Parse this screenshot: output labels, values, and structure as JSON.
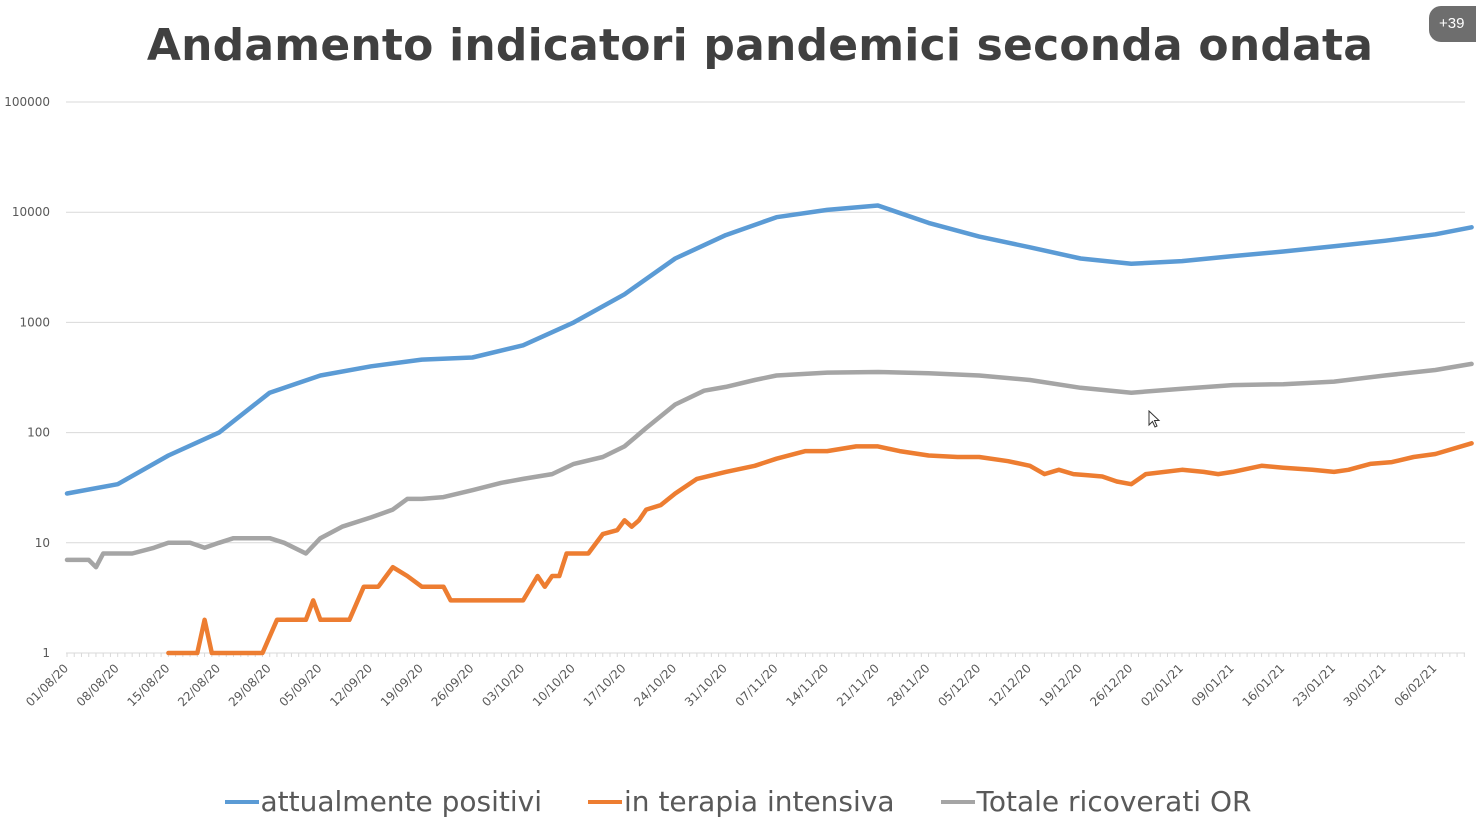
{
  "badge": "+39",
  "chart_data": {
    "type": "line",
    "title": "Andamento indicatori pandemici seconda ondata",
    "xlabel": "",
    "ylabel": "",
    "y_scale": "log",
    "ylim": [
      1,
      100000
    ],
    "y_ticks": [
      "1",
      "10",
      "100",
      "1000",
      "10000",
      "100000"
    ],
    "x_tick_labels": [
      "01/08/20",
      "08/08/20",
      "15/08/20",
      "22/08/20",
      "29/08/20",
      "05/09/20",
      "12/09/20",
      "19/09/20",
      "26/09/20",
      "03/10/20",
      "10/10/20",
      "17/10/20",
      "24/10/20",
      "31/10/20",
      "07/11/20",
      "14/11/20",
      "21/11/20",
      "28/11/20",
      "05/12/20",
      "12/12/20",
      "19/12/20",
      "26/12/20",
      "02/01/21",
      "09/01/21",
      "16/01/21",
      "23/01/21",
      "30/01/21",
      "06/02/21"
    ],
    "grid": true,
    "legend_position": "bottom",
    "series": [
      {
        "name": "attualmente positivi",
        "color": "#5b9bd5",
        "points": [
          [
            "01/08/20",
            28
          ],
          [
            "08/08/20",
            34
          ],
          [
            "15/08/20",
            62
          ],
          [
            "22/08/20",
            100
          ],
          [
            "29/08/20",
            230
          ],
          [
            "05/09/20",
            330
          ],
          [
            "12/09/20",
            400
          ],
          [
            "19/09/20",
            460
          ],
          [
            "26/09/20",
            480
          ],
          [
            "03/10/20",
            620
          ],
          [
            "10/10/20",
            1000
          ],
          [
            "17/10/20",
            1800
          ],
          [
            "24/10/20",
            3800
          ],
          [
            "31/10/20",
            6200
          ],
          [
            "07/11/20",
            9000
          ],
          [
            "14/11/20",
            10500
          ],
          [
            "21/11/20",
            11500
          ],
          [
            "28/11/20",
            8000
          ],
          [
            "05/12/20",
            6000
          ],
          [
            "12/12/20",
            4800
          ],
          [
            "19/12/20",
            3800
          ],
          [
            "26/12/20",
            3400
          ],
          [
            "02/01/21",
            3600
          ],
          [
            "09/01/21",
            4000
          ],
          [
            "16/01/21",
            4400
          ],
          [
            "23/01/21",
            4900
          ],
          [
            "30/01/21",
            5500
          ],
          [
            "06/02/21",
            6300
          ],
          [
            "11/02/21",
            7300
          ]
        ]
      },
      {
        "name": "in terapia intensiva",
        "color": "#ed7d31",
        "points": [
          [
            "15/08/20",
            1
          ],
          [
            "19/08/20",
            1
          ],
          [
            "20/08/20",
            2
          ],
          [
            "21/08/20",
            1
          ],
          [
            "28/08/20",
            1
          ],
          [
            "30/08/20",
            2
          ],
          [
            "03/09/20",
            2
          ],
          [
            "04/09/20",
            3
          ],
          [
            "05/09/20",
            2
          ],
          [
            "09/09/20",
            2
          ],
          [
            "11/09/20",
            4
          ],
          [
            "13/09/20",
            4
          ],
          [
            "15/09/20",
            6
          ],
          [
            "17/09/20",
            5
          ],
          [
            "19/09/20",
            4
          ],
          [
            "22/09/20",
            4
          ],
          [
            "23/09/20",
            3
          ],
          [
            "30/09/20",
            3
          ],
          [
            "03/10/20",
            3
          ],
          [
            "05/10/20",
            5
          ],
          [
            "06/10/20",
            4
          ],
          [
            "07/10/20",
            5
          ],
          [
            "08/10/20",
            5
          ],
          [
            "09/10/20",
            8
          ],
          [
            "12/10/20",
            8
          ],
          [
            "14/10/20",
            12
          ],
          [
            "16/10/20",
            13
          ],
          [
            "17/10/20",
            16
          ],
          [
            "18/10/20",
            14
          ],
          [
            "19/10/20",
            16
          ],
          [
            "20/10/20",
            20
          ],
          [
            "22/10/20",
            22
          ],
          [
            "24/10/20",
            28
          ],
          [
            "27/10/20",
            38
          ],
          [
            "31/10/20",
            44
          ],
          [
            "04/11/20",
            50
          ],
          [
            "07/11/20",
            58
          ],
          [
            "11/11/20",
            68
          ],
          [
            "14/11/20",
            68
          ],
          [
            "18/11/20",
            75
          ],
          [
            "21/11/20",
            75
          ],
          [
            "24/11/20",
            68
          ],
          [
            "28/11/20",
            62
          ],
          [
            "02/12/20",
            60
          ],
          [
            "05/12/20",
            60
          ],
          [
            "09/12/20",
            55
          ],
          [
            "12/12/20",
            50
          ],
          [
            "14/12/20",
            42
          ],
          [
            "16/12/20",
            46
          ],
          [
            "18/12/20",
            42
          ],
          [
            "20/12/20",
            41
          ],
          [
            "22/12/20",
            40
          ],
          [
            "24/12/20",
            36
          ],
          [
            "26/12/20",
            34
          ],
          [
            "28/12/20",
            42
          ],
          [
            "02/01/21",
            46
          ],
          [
            "05/01/21",
            44
          ],
          [
            "07/01/21",
            42
          ],
          [
            "09/01/21",
            44
          ],
          [
            "13/01/21",
            50
          ],
          [
            "16/01/21",
            48
          ],
          [
            "20/01/21",
            46
          ],
          [
            "23/01/21",
            44
          ],
          [
            "25/01/21",
            46
          ],
          [
            "28/01/21",
            52
          ],
          [
            "31/01/21",
            54
          ],
          [
            "03/02/21",
            60
          ],
          [
            "06/02/21",
            64
          ],
          [
            "11/02/21",
            80
          ]
        ]
      },
      {
        "name": "Totale ricoverati OR",
        "color": "#a5a5a5",
        "points": [
          [
            "01/08/20",
            7
          ],
          [
            "04/08/20",
            7
          ],
          [
            "05/08/20",
            6
          ],
          [
            "06/08/20",
            8
          ],
          [
            "10/08/20",
            8
          ],
          [
            "13/08/20",
            9
          ],
          [
            "15/08/20",
            10
          ],
          [
            "18/08/20",
            10
          ],
          [
            "20/08/20",
            9
          ],
          [
            "22/08/20",
            10
          ],
          [
            "24/08/20",
            11
          ],
          [
            "27/08/20",
            11
          ],
          [
            "29/08/20",
            11
          ],
          [
            "31/08/20",
            10
          ],
          [
            "03/09/20",
            8
          ],
          [
            "05/09/20",
            11
          ],
          [
            "08/09/20",
            14
          ],
          [
            "12/09/20",
            17
          ],
          [
            "15/09/20",
            20
          ],
          [
            "17/09/20",
            25
          ],
          [
            "19/09/20",
            25
          ],
          [
            "22/09/20",
            26
          ],
          [
            "26/09/20",
            30
          ],
          [
            "30/09/20",
            35
          ],
          [
            "03/10/20",
            38
          ],
          [
            "07/10/20",
            42
          ],
          [
            "10/10/20",
            52
          ],
          [
            "14/10/20",
            60
          ],
          [
            "17/10/20",
            75
          ],
          [
            "20/10/20",
            110
          ],
          [
            "24/10/20",
            180
          ],
          [
            "28/10/20",
            240
          ],
          [
            "31/10/20",
            260
          ],
          [
            "04/11/20",
            300
          ],
          [
            "07/11/20",
            330
          ],
          [
            "14/11/20",
            350
          ],
          [
            "21/11/20",
            355
          ],
          [
            "28/11/20",
            345
          ],
          [
            "05/12/20",
            330
          ],
          [
            "12/12/20",
            300
          ],
          [
            "19/12/20",
            255
          ],
          [
            "26/12/20",
            230
          ],
          [
            "02/01/21",
            250
          ],
          [
            "09/01/21",
            270
          ],
          [
            "16/01/21",
            275
          ],
          [
            "23/01/21",
            290
          ],
          [
            "30/01/21",
            330
          ],
          [
            "06/02/21",
            370
          ],
          [
            "11/02/21",
            420
          ]
        ]
      }
    ]
  }
}
